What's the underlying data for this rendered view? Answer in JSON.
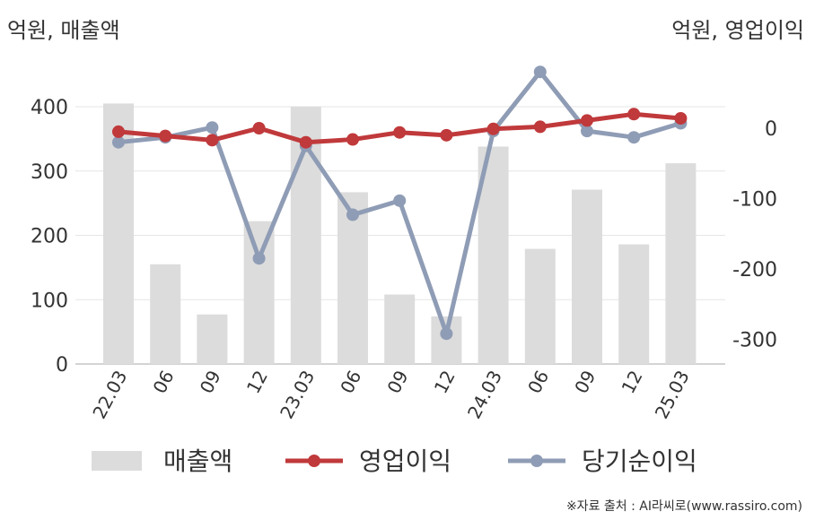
{
  "units": {
    "left": "억원, 매출액",
    "right": "억원, 영업이익"
  },
  "source": "※자료 출처 : AI라씨로(www.rassiro.com)",
  "chart_data": {
    "type": "bar+line",
    "categories": [
      "22.03",
      "06",
      "09",
      "12",
      "23.03",
      "06",
      "09",
      "12",
      "24.03",
      "06",
      "09",
      "12",
      "25.03"
    ],
    "left_axis": {
      "ticks": [
        0,
        100,
        200,
        300,
        400
      ],
      "range": [
        0,
        450
      ]
    },
    "right_axis": {
      "ticks": [
        0,
        -100,
        -200,
        -300
      ],
      "range": [
        -342,
        40
      ]
    },
    "series": [
      {
        "name": "매출액",
        "kind": "bar",
        "axis": "left",
        "color": "#dcdcdc",
        "values": [
          405,
          155,
          77,
          222,
          400,
          267,
          108,
          74,
          338,
          179,
          271,
          186,
          312
        ]
      },
      {
        "name": "영업이익",
        "kind": "line",
        "axis": "right",
        "color": "#c0393b",
        "values": [
          -5,
          -11,
          -17,
          0,
          -20,
          -16,
          -6,
          -10,
          -1,
          2,
          11,
          20,
          14
        ]
      },
      {
        "name": "당기순이익",
        "kind": "line",
        "axis": "right",
        "color": "#8f9cb5",
        "values": [
          -20,
          -13,
          1,
          -185,
          -25,
          -123,
          -103,
          -292,
          -4,
          80,
          -4,
          -13,
          7
        ]
      }
    ],
    "legend": {
      "position": "bottom",
      "entries": [
        "매출액",
        "영업이익",
        "당기순이익"
      ]
    },
    "grid": "horizontal"
  }
}
